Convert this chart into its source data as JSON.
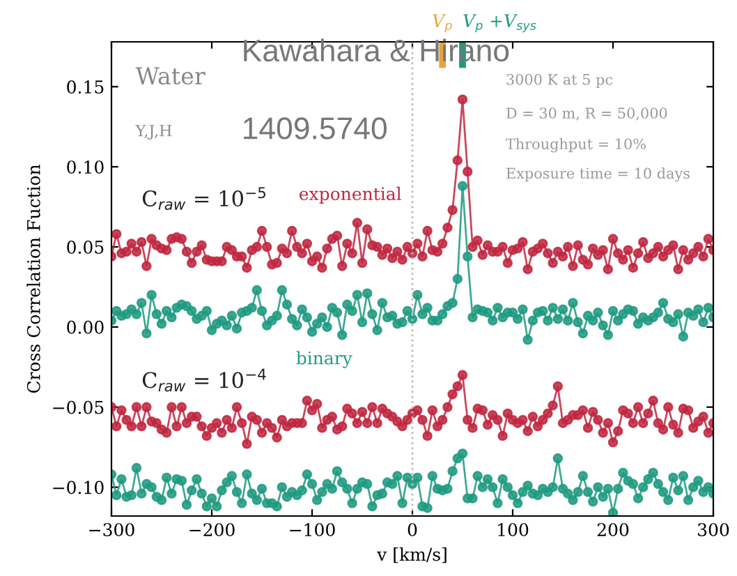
{
  "chart_data": {
    "type": "line",
    "xlabel": "v [km/s]",
    "ylabel": "Cross Correlation Fuction",
    "x": [
      -300,
      -295,
      -290,
      -285,
      -280,
      -275,
      -270,
      -265,
      -260,
      -255,
      -250,
      -245,
      -240,
      -235,
      -230,
      -225,
      -220,
      -215,
      -210,
      -205,
      -200,
      -195,
      -190,
      -185,
      -180,
      -175,
      -170,
      -165,
      -160,
      -155,
      -150,
      -145,
      -140,
      -135,
      -130,
      -125,
      -120,
      -115,
      -110,
      -105,
      -100,
      -95,
      -90,
      -85,
      -80,
      -75,
      -70,
      -65,
      -60,
      -55,
      -50,
      -45,
      -40,
      -35,
      -30,
      -25,
      -20,
      -15,
      -10,
      -5,
      0,
      5,
      10,
      15,
      20,
      25,
      30,
      35,
      40,
      45,
      50,
      55,
      60,
      65,
      70,
      75,
      80,
      85,
      90,
      95,
      100,
      105,
      110,
      115,
      120,
      125,
      130,
      135,
      140,
      145,
      150,
      155,
      160,
      165,
      170,
      175,
      180,
      185,
      190,
      195,
      200,
      205,
      210,
      215,
      220,
      225,
      230,
      235,
      240,
      245,
      250,
      255,
      260,
      265,
      270,
      275,
      280,
      285,
      290,
      295,
      300
    ],
    "series": [
      {
        "name": "exponential",
        "color": "#c0273f",
        "values": [
          0.044,
          0.058,
          0.046,
          0.047,
          0.052,
          0.047,
          0.053,
          0.038,
          0.055,
          0.051,
          0.049,
          0.048,
          0.055,
          0.056,
          0.055,
          0.047,
          0.04,
          0.047,
          0.051,
          0.042,
          0.041,
          0.041,
          0.041,
          0.05,
          0.048,
          0.044,
          0.044,
          0.037,
          0.048,
          0.05,
          0.06,
          0.05,
          0.039,
          0.04,
          0.049,
          0.046,
          0.06,
          0.05,
          0.046,
          0.052,
          0.041,
          0.044,
          0.037,
          0.049,
          0.055,
          0.057,
          0.038,
          0.052,
          0.046,
          0.065,
          0.04,
          0.061,
          0.051,
          0.05,
          0.045,
          0.049,
          0.043,
          0.047,
          0.042,
          0.05,
          0.046,
          0.052,
          0.044,
          0.06,
          0.048,
          0.047,
          0.052,
          0.062,
          0.073,
          0.104,
          0.142,
          0.097,
          0.05,
          0.054,
          0.045,
          0.051,
          0.047,
          0.047,
          0.05,
          0.04,
          0.048,
          0.049,
          0.053,
          0.036,
          0.047,
          0.049,
          0.052,
          0.046,
          0.04,
          0.047,
          0.044,
          0.05,
          0.038,
          0.051,
          0.042,
          0.039,
          0.049,
          0.045,
          0.048,
          0.036,
          0.055,
          0.046,
          0.042,
          0.048,
          0.037,
          0.046,
          0.053,
          0.043,
          0.046,
          0.05,
          0.044,
          0.048,
          0.051,
          0.036,
          0.048,
          0.042,
          0.046,
          0.05,
          0.044,
          0.055,
          0.048
        ]
      },
      {
        "name": "binary",
        "color": "#1f9a80",
        "values": [
          0.004,
          0.01,
          0.007,
          0.008,
          0.011,
          0.008,
          0.015,
          -0.004,
          0.02,
          0.008,
          0.002,
          0.01,
          0.006,
          0.012,
          0.014,
          0.013,
          0.01,
          0.005,
          0.007,
          0.01,
          -0.002,
          0.002,
          0.004,
          0.001,
          0.007,
          -0.001,
          0.009,
          0.01,
          0.012,
          0.023,
          0.01,
          0.001,
          0.004,
          0.007,
          0.023,
          0.014,
          0.005,
          0.001,
          0.011,
          0.006,
          -0.003,
          0.002,
          0.006,
          0.0,
          0.012,
          0.009,
          -0.005,
          0.014,
          0.01,
          0.02,
          0.003,
          0.021,
          0.008,
          -0.002,
          0.015,
          0.006,
          0.007,
          0.002,
          0.003,
          0.01,
          0.005,
          0.02,
          0.008,
          0.012,
          0.004,
          0.004,
          0.008,
          0.013,
          0.015,
          0.03,
          0.088,
          0.044,
          0.006,
          0.011,
          0.01,
          0.009,
          0.004,
          0.012,
          0.006,
          0.009,
          0.009,
          0.005,
          0.011,
          -0.008,
          0.004,
          0.009,
          0.01,
          0.004,
          0.012,
          0.005,
          0.011,
          0.004,
          0.015,
          0.003,
          -0.004,
          0.007,
          0.004,
          0.009,
          0.001,
          -0.005,
          0.01,
          0.004,
          0.008,
          0.011,
          0.01,
          0.002,
          0.006,
          0.004,
          0.006,
          0.009,
          0.015,
          0.005,
          0.003,
          0.008,
          -0.006,
          0.009,
          0.007,
          0.011,
          0.003,
          0.012,
          0.006
        ]
      },
      {
        "color": "#c0273f",
        "values": [
          -0.05,
          -0.062,
          -0.052,
          -0.058,
          -0.062,
          -0.05,
          -0.062,
          -0.05,
          -0.059,
          -0.06,
          -0.064,
          -0.066,
          -0.05,
          -0.062,
          -0.05,
          -0.06,
          -0.056,
          -0.056,
          -0.062,
          -0.068,
          -0.063,
          -0.06,
          -0.066,
          -0.058,
          -0.063,
          -0.05,
          -0.06,
          -0.073,
          -0.056,
          -0.058,
          -0.066,
          -0.06,
          -0.063,
          -0.069,
          -0.058,
          -0.062,
          -0.06,
          -0.06,
          -0.06,
          -0.046,
          -0.052,
          -0.048,
          -0.063,
          -0.058,
          -0.056,
          -0.064,
          -0.062,
          -0.051,
          -0.054,
          -0.06,
          -0.053,
          -0.06,
          -0.05,
          -0.06,
          -0.051,
          -0.054,
          -0.056,
          -0.059,
          -0.062,
          -0.058,
          -0.054,
          -0.052,
          -0.058,
          -0.068,
          -0.052,
          -0.062,
          -0.058,
          -0.05,
          -0.042,
          -0.037,
          -0.03,
          -0.058,
          -0.063,
          -0.051,
          -0.052,
          -0.061,
          -0.055,
          -0.058,
          -0.068,
          -0.054,
          -0.058,
          -0.06,
          -0.058,
          -0.065,
          -0.056,
          -0.062,
          -0.058,
          -0.054,
          -0.049,
          -0.037,
          -0.06,
          -0.058,
          -0.055,
          -0.055,
          -0.052,
          -0.063,
          -0.053,
          -0.058,
          -0.066,
          -0.06,
          -0.072,
          -0.065,
          -0.052,
          -0.054,
          -0.06,
          -0.05,
          -0.06,
          -0.054,
          -0.046,
          -0.06,
          -0.064,
          -0.05,
          -0.061,
          -0.066,
          -0.051,
          -0.052,
          -0.063,
          -0.059,
          -0.056,
          -0.066,
          -0.06
        ]
      },
      {
        "color": "#1f9a80",
        "values": [
          -0.092,
          -0.105,
          -0.095,
          -0.106,
          -0.105,
          -0.088,
          -0.104,
          -0.098,
          -0.1,
          -0.106,
          -0.108,
          -0.094,
          -0.104,
          -0.095,
          -0.096,
          -0.111,
          -0.102,
          -0.095,
          -0.104,
          -0.112,
          -0.107,
          -0.112,
          -0.102,
          -0.097,
          -0.093,
          -0.103,
          -0.11,
          -0.092,
          -0.104,
          -0.108,
          -0.101,
          -0.11,
          -0.11,
          -0.112,
          -0.1,
          -0.106,
          -0.103,
          -0.105,
          -0.102,
          -0.092,
          -0.098,
          -0.108,
          -0.103,
          -0.098,
          -0.101,
          -0.09,
          -0.097,
          -0.101,
          -0.11,
          -0.101,
          -0.097,
          -0.098,
          -0.112,
          -0.105,
          -0.104,
          -0.097,
          -0.098,
          -0.093,
          -0.11,
          -0.094,
          -0.098,
          -0.094,
          -0.112,
          -0.113,
          -0.093,
          -0.101,
          -0.102,
          -0.101,
          -0.09,
          -0.082,
          -0.079,
          -0.107,
          -0.107,
          -0.093,
          -0.1,
          -0.095,
          -0.1,
          -0.11,
          -0.095,
          -0.1,
          -0.105,
          -0.11,
          -0.103,
          -0.099,
          -0.104,
          -0.105,
          -0.101,
          -0.103,
          -0.1,
          -0.082,
          -0.101,
          -0.104,
          -0.108,
          -0.103,
          -0.093,
          -0.103,
          -0.109,
          -0.1,
          -0.106,
          -0.101,
          -0.116,
          -0.101,
          -0.091,
          -0.096,
          -0.098,
          -0.107,
          -0.1,
          -0.095,
          -0.091,
          -0.098,
          -0.103,
          -0.108,
          -0.094,
          -0.102,
          -0.093,
          -0.108,
          -0.1,
          -0.096,
          -0.103,
          -0.1,
          -0.104
        ]
      }
    ],
    "marker": "circle",
    "line_style": "solid",
    "grid": false,
    "legend": false,
    "xlim": [
      -300,
      300
    ],
    "xticks": [
      {
        "value": -300,
        "label": "−300"
      },
      {
        "value": -200,
        "label": "−200"
      },
      {
        "value": -100,
        "label": "−100"
      },
      0,
      100,
      200,
      300
    ],
    "ylim": [
      -0.118,
      0.178
    ],
    "yticks": [
      {
        "value": -0.1,
        "label": "−0.10"
      },
      {
        "value": -0.05,
        "label": "−0.05"
      },
      {
        "value": 0,
        "label": "0.00"
      },
      {
        "value": 0.05,
        "label": "0.05"
      },
      {
        "value": 0.1,
        "label": "0.10"
      },
      {
        "value": 0.15,
        "label": "0.15"
      }
    ],
    "ref_lines": [
      {
        "axis": "x",
        "value": 0,
        "color": "#bbbbbb",
        "line_style": "dotted"
      },
      {
        "axis": "x",
        "value": 30,
        "label": "V$_{p}$",
        "color": "#e8a33a",
        "line_style": "solid"
      },
      {
        "axis": "x",
        "value": 50,
        "label": "V$_{p}$ +V$_{sys}$",
        "color": "#1f9a80",
        "line_style": "solid"
      }
    ],
    "annotations": [
      "Water",
      "Y,J,H",
      "C$_{raw}$ = 10$^{−5}$",
      "C$_{raw}$ = 10$^{−4}$",
      "3000 K at 5 pc",
      "D = 30 m, R = 50,000",
      "Throughput = 10%",
      "Exposure time = 10 days",
      "Kawahara & Hirano",
      "1409.5740"
    ]
  }
}
